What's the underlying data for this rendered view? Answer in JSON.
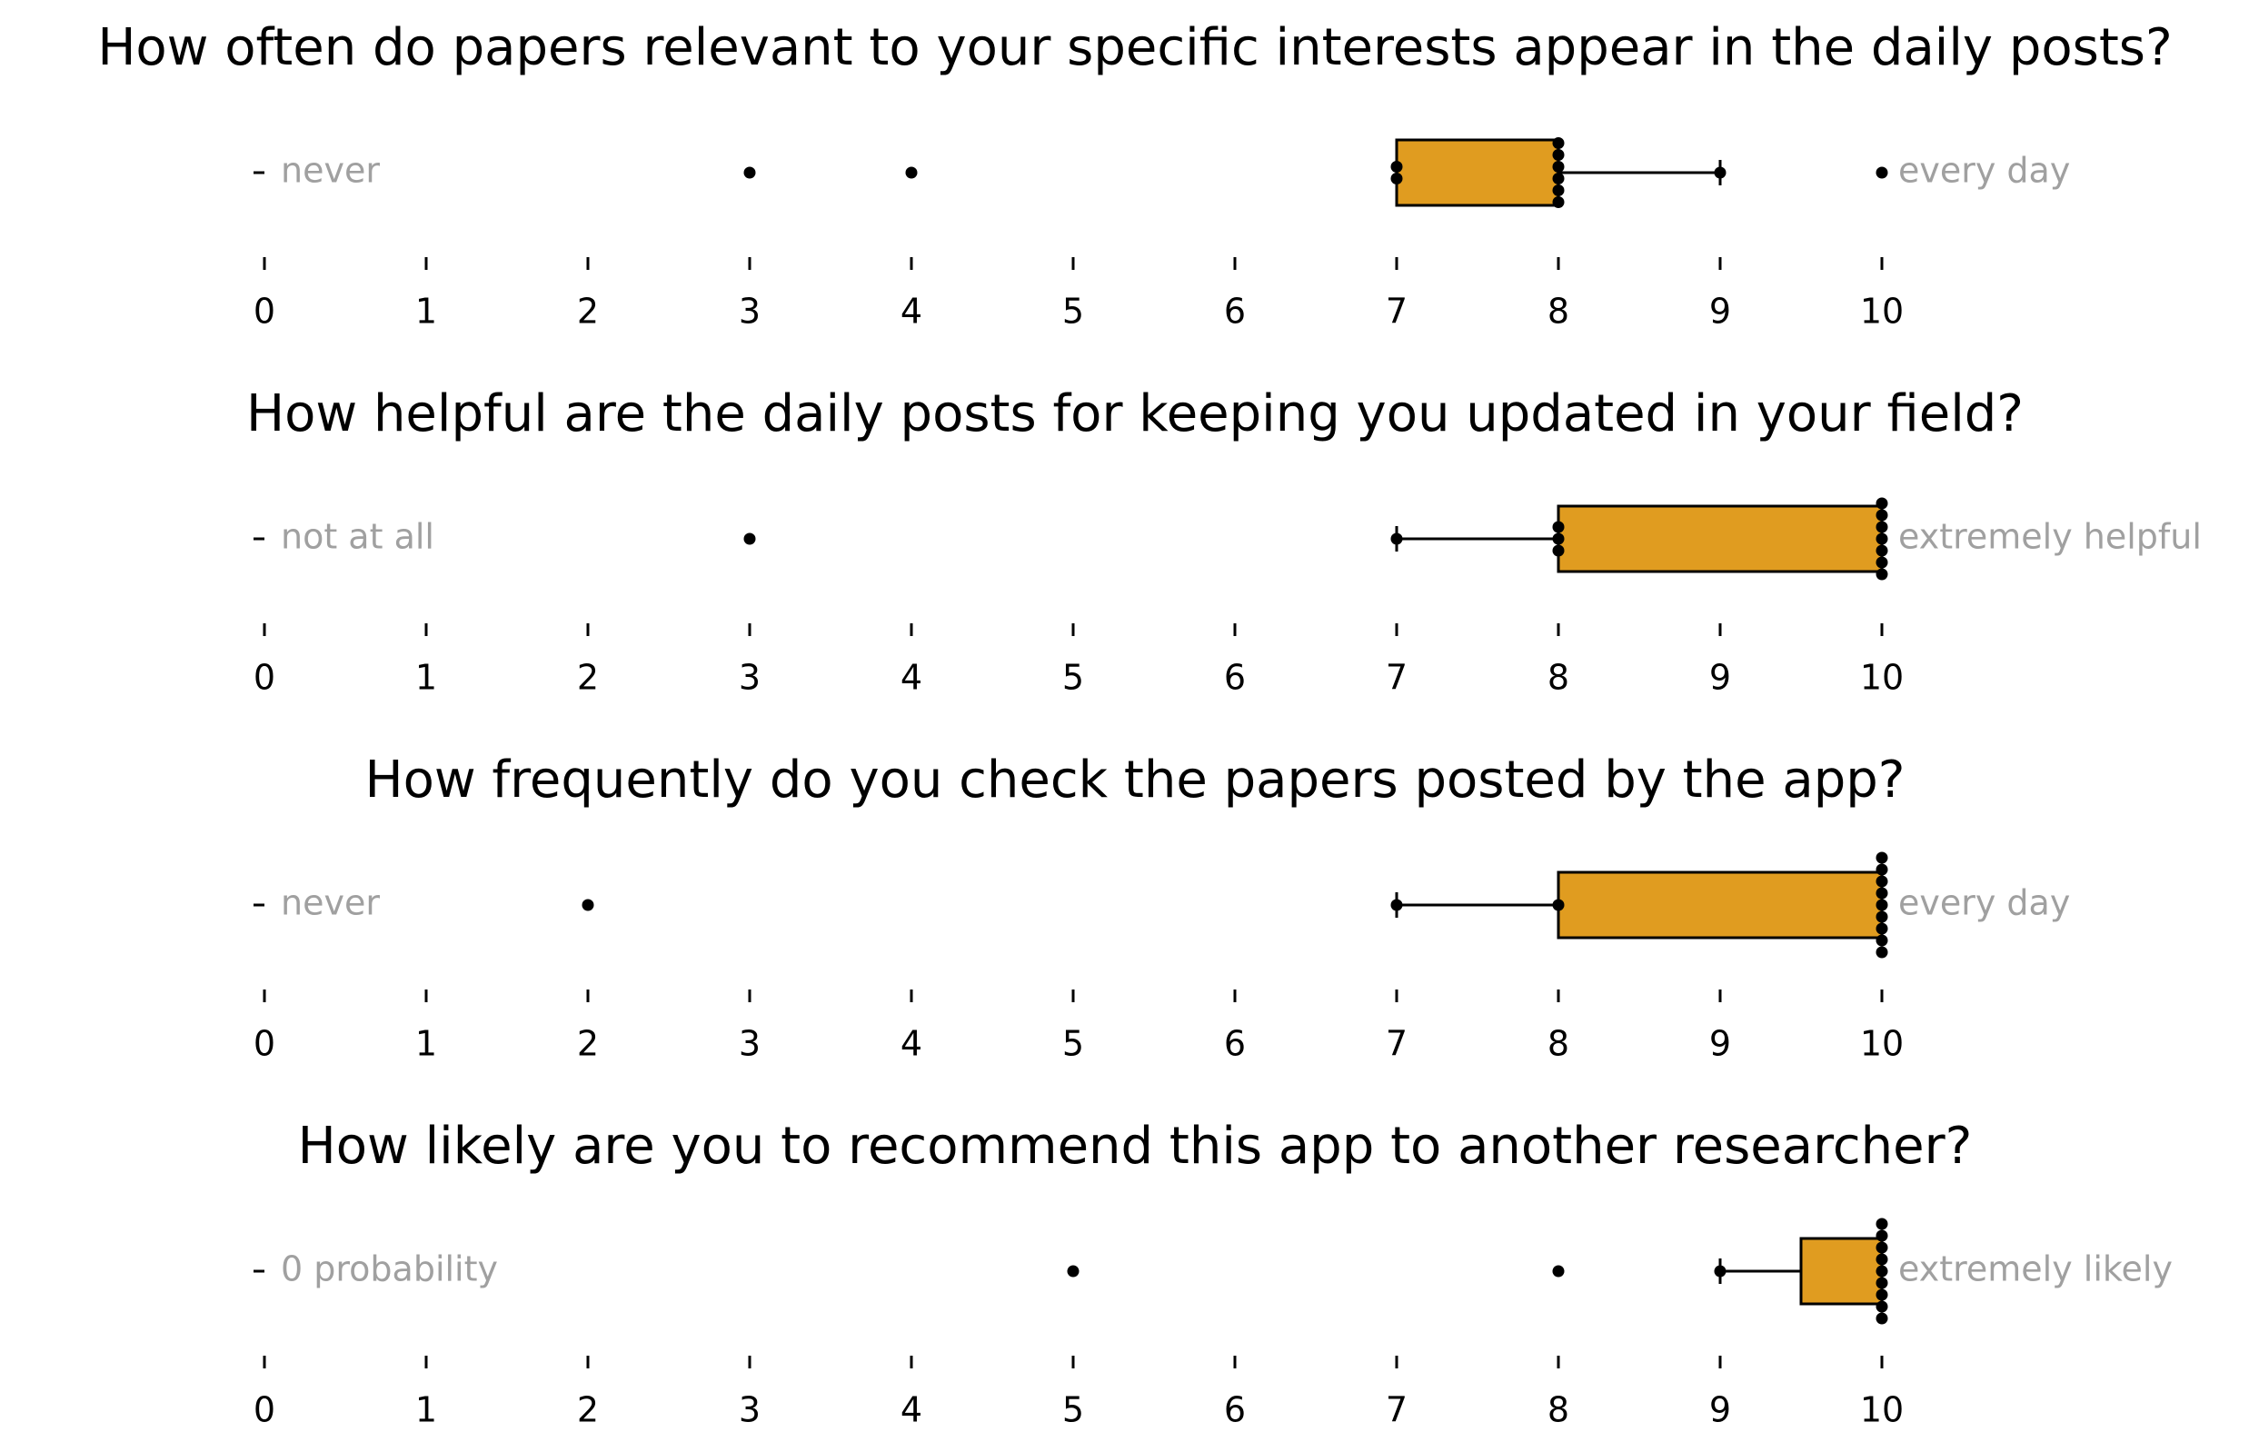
{
  "colors": {
    "box_fill": "#E09C20",
    "anchor_text": "#a0a0a0",
    "ink": "#000000"
  },
  "chart_data": [
    {
      "type": "box",
      "title": "How often do papers relevant to your specific interests appear in the daily posts?",
      "xlim": [
        0,
        10
      ],
      "ticks": [
        0,
        1,
        2,
        3,
        4,
        5,
        6,
        7,
        8,
        9,
        10
      ],
      "anchor_low": "never",
      "anchor_high": "every day",
      "box": {
        "q1": 7,
        "median": 8,
        "q3": 8,
        "whisker_low": 7,
        "whisker_high": 9
      },
      "points": [
        3,
        4,
        7,
        7,
        8,
        8,
        8,
        8,
        8,
        8,
        9,
        10
      ]
    },
    {
      "type": "box",
      "title": "How helpful are the daily posts for keeping you updated in your field?",
      "xlim": [
        0,
        10
      ],
      "ticks": [
        0,
        1,
        2,
        3,
        4,
        5,
        6,
        7,
        8,
        9,
        10
      ],
      "anchor_low": "not at all",
      "anchor_high": "extremely helpful",
      "box": {
        "q1": 8,
        "median": 10,
        "q3": 10,
        "whisker_low": 7,
        "whisker_high": 10
      },
      "points": [
        3,
        7,
        8,
        8,
        8,
        10,
        10,
        10,
        10,
        10,
        10,
        10
      ]
    },
    {
      "type": "box",
      "title": "How frequently do you check the papers posted by the app?",
      "xlim": [
        0,
        10
      ],
      "ticks": [
        0,
        1,
        2,
        3,
        4,
        5,
        6,
        7,
        8,
        9,
        10
      ],
      "anchor_low": "never",
      "anchor_high": "every day",
      "box": {
        "q1": 8,
        "median": 10,
        "q3": 10,
        "whisker_low": 7,
        "whisker_high": 10
      },
      "points": [
        2,
        7,
        8,
        10,
        10,
        10,
        10,
        10,
        10,
        10,
        10,
        10
      ]
    },
    {
      "type": "box",
      "title": "How likely are you to recommend this app to another researcher?",
      "xlim": [
        0,
        10
      ],
      "ticks": [
        0,
        1,
        2,
        3,
        4,
        5,
        6,
        7,
        8,
        9,
        10
      ],
      "anchor_low": "0 probability",
      "anchor_high": "extremely likely",
      "box": {
        "q1": 9.5,
        "median": 10,
        "q3": 10,
        "whisker_low": 9,
        "whisker_high": 10
      },
      "points": [
        5,
        8,
        9,
        10,
        10,
        10,
        10,
        10,
        10,
        10,
        10,
        10
      ]
    }
  ]
}
